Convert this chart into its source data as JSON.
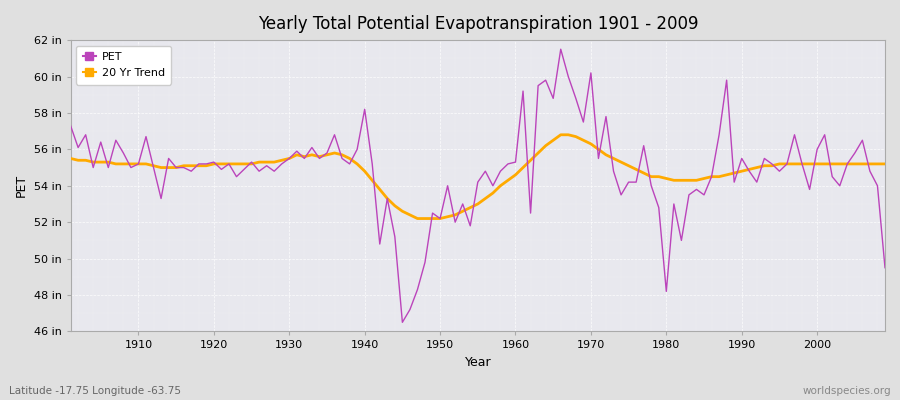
{
  "title": "Yearly Total Potential Evapotranspiration 1901 - 2009",
  "xlabel": "Year",
  "ylabel": "PET",
  "footnote_left": "Latitude -17.75 Longitude -63.75",
  "footnote_right": "worldspecies.org",
  "pet_color": "#bb44bb",
  "trend_color": "#ffaa00",
  "fig_bg_color": "#e0e0e0",
  "plot_bg_color": "#e8e8ee",
  "ylim": [
    46,
    62
  ],
  "yticks": [
    46,
    48,
    50,
    52,
    54,
    56,
    58,
    60,
    62
  ],
  "ytick_labels": [
    "46 in",
    "48 in",
    "50 in",
    "52 in",
    "54 in",
    "56 in",
    "58 in",
    "60 in",
    "62 in"
  ],
  "xlim": [
    1901,
    2009
  ],
  "xticks": [
    1910,
    1920,
    1930,
    1940,
    1950,
    1960,
    1970,
    1980,
    1990,
    2000
  ],
  "years": [
    1901,
    1902,
    1903,
    1904,
    1905,
    1906,
    1907,
    1908,
    1909,
    1910,
    1911,
    1912,
    1913,
    1914,
    1915,
    1916,
    1917,
    1918,
    1919,
    1920,
    1921,
    1922,
    1923,
    1924,
    1925,
    1926,
    1927,
    1928,
    1929,
    1930,
    1931,
    1932,
    1933,
    1934,
    1935,
    1936,
    1937,
    1938,
    1939,
    1940,
    1941,
    1942,
    1943,
    1944,
    1945,
    1946,
    1947,
    1948,
    1949,
    1950,
    1951,
    1952,
    1953,
    1954,
    1955,
    1956,
    1957,
    1958,
    1959,
    1960,
    1961,
    1962,
    1963,
    1964,
    1965,
    1966,
    1967,
    1968,
    1969,
    1970,
    1971,
    1972,
    1973,
    1974,
    1975,
    1976,
    1977,
    1978,
    1979,
    1980,
    1981,
    1982,
    1983,
    1984,
    1985,
    1986,
    1987,
    1988,
    1989,
    1990,
    1991,
    1992,
    1993,
    1994,
    1995,
    1996,
    1997,
    1998,
    1999,
    2000,
    2001,
    2002,
    2003,
    2004,
    2005,
    2006,
    2007,
    2008,
    2009
  ],
  "pet_values": [
    57.3,
    56.1,
    56.8,
    55.0,
    56.4,
    55.0,
    56.5,
    55.8,
    55.0,
    55.2,
    56.7,
    55.0,
    53.3,
    55.5,
    55.0,
    55.0,
    54.8,
    55.2,
    55.2,
    55.3,
    54.9,
    55.2,
    54.5,
    54.9,
    55.3,
    54.8,
    55.1,
    54.8,
    55.2,
    55.5,
    55.9,
    55.5,
    56.1,
    55.5,
    55.8,
    56.8,
    55.5,
    55.2,
    56.0,
    58.2,
    55.2,
    50.8,
    53.3,
    51.2,
    46.5,
    47.2,
    48.3,
    49.8,
    52.5,
    52.2,
    54.0,
    52.0,
    53.0,
    51.8,
    54.2,
    54.8,
    54.0,
    54.8,
    55.2,
    55.3,
    59.2,
    52.5,
    59.5,
    59.8,
    58.8,
    61.5,
    60.0,
    58.8,
    57.5,
    60.2,
    55.5,
    57.8,
    54.8,
    53.5,
    54.2,
    54.2,
    56.2,
    54.0,
    52.8,
    48.2,
    53.0,
    51.0,
    53.5,
    53.8,
    53.5,
    54.5,
    56.8,
    59.8,
    54.2,
    55.5,
    54.8,
    54.2,
    55.5,
    55.2,
    54.8,
    55.2,
    56.8,
    55.2,
    53.8,
    56.0,
    56.8,
    54.5,
    54.0,
    55.2,
    55.8,
    56.5,
    54.8,
    54.0,
    49.5
  ],
  "trend_values": [
    55.5,
    55.4,
    55.4,
    55.3,
    55.3,
    55.3,
    55.2,
    55.2,
    55.2,
    55.2,
    55.2,
    55.1,
    55.0,
    55.0,
    55.0,
    55.1,
    55.1,
    55.1,
    55.1,
    55.2,
    55.2,
    55.2,
    55.2,
    55.2,
    55.2,
    55.3,
    55.3,
    55.3,
    55.4,
    55.5,
    55.7,
    55.6,
    55.7,
    55.6,
    55.7,
    55.8,
    55.7,
    55.5,
    55.2,
    54.8,
    54.3,
    53.8,
    53.3,
    52.9,
    52.6,
    52.4,
    52.2,
    52.2,
    52.2,
    52.2,
    52.3,
    52.4,
    52.6,
    52.8,
    53.0,
    53.3,
    53.6,
    54.0,
    54.3,
    54.6,
    55.0,
    55.4,
    55.8,
    56.2,
    56.5,
    56.8,
    56.8,
    56.7,
    56.5,
    56.3,
    56.0,
    55.7,
    55.5,
    55.3,
    55.1,
    54.9,
    54.7,
    54.5,
    54.5,
    54.4,
    54.3,
    54.3,
    54.3,
    54.3,
    54.4,
    54.5,
    54.5,
    54.6,
    54.7,
    54.8,
    54.9,
    55.0,
    55.1,
    55.1,
    55.2,
    55.2,
    55.2,
    55.2,
    55.2,
    55.2,
    55.2,
    55.2,
    55.2,
    55.2,
    55.2,
    55.2,
    55.2,
    55.2,
    55.2
  ]
}
